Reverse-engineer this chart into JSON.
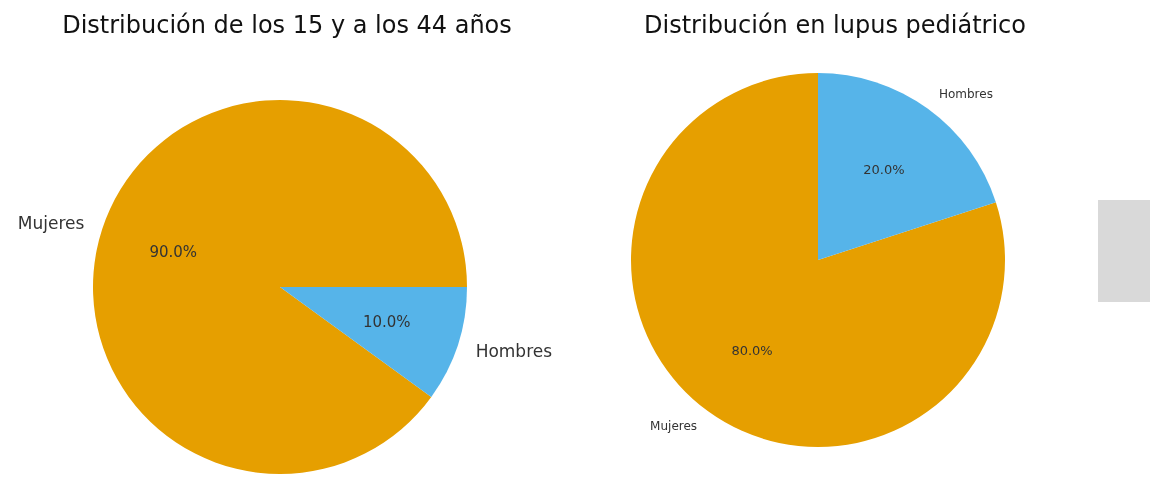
{
  "chart_data": [
    {
      "type": "pie",
      "title": "Distribución de los 15 y a los 44 años",
      "categories": [
        "Mujeres",
        "Hombres"
      ],
      "values": [
        90,
        10
      ],
      "value_labels": [
        "90.0%",
        "10.0%"
      ],
      "colors": [
        "#e69f00",
        "#56b4e9"
      ]
    },
    {
      "type": "pie",
      "title": "Distribución en lupus pediátrico",
      "categories": [
        "Mujeres",
        "Hombres"
      ],
      "values": [
        80,
        20
      ],
      "value_labels": [
        "80.0%",
        "20.0%"
      ],
      "colors": [
        "#e69f00",
        "#56b4e9"
      ]
    }
  ]
}
